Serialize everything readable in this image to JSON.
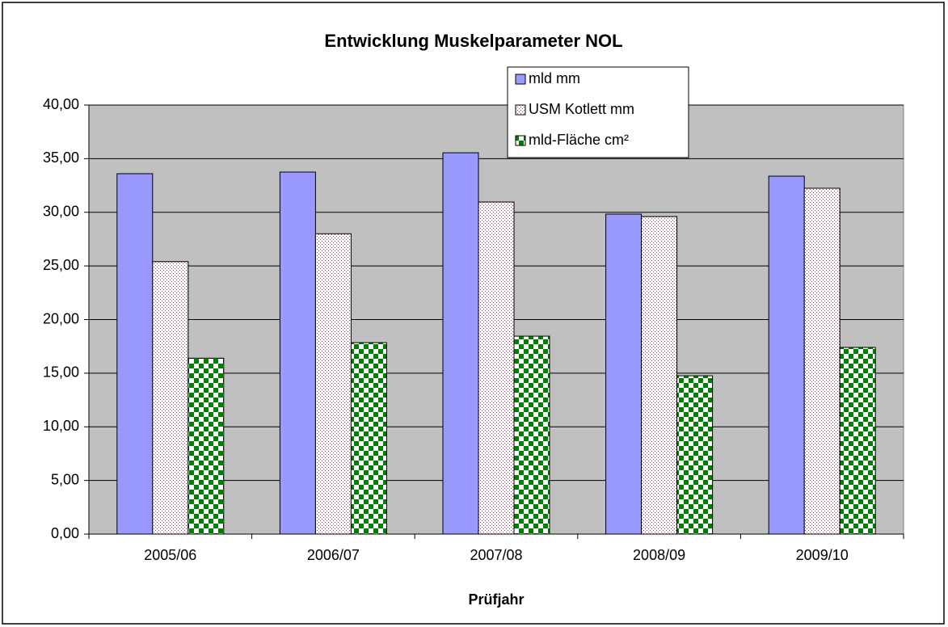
{
  "chart_data": {
    "type": "bar",
    "title": "Entwicklung Muskelparameter NOL",
    "x_label": "Prüfjahr",
    "categories": [
      "2005/06",
      "2006/07",
      "2007/08",
      "2008/09",
      "2009/10"
    ],
    "series": [
      {
        "name": "mld mm",
        "color": "#9999ff",
        "pattern": "solid",
        "values": [
          33.6,
          33.75,
          35.55,
          29.83,
          33.37
        ]
      },
      {
        "name": "USM Kotlett mm",
        "color": "#993366",
        "pattern": "dots",
        "values": [
          25.4,
          28.0,
          30.96,
          29.6,
          32.24
        ]
      },
      {
        "name": "mld-Fläche cm²",
        "color": "#008000",
        "pattern": "checker",
        "values": [
          16.4,
          17.85,
          18.45,
          14.76,
          17.4
        ]
      }
    ],
    "ylim": [
      0,
      40
    ],
    "yticks": [
      {
        "value": 0,
        "label": "0,00"
      },
      {
        "value": 5,
        "label": "5,00"
      },
      {
        "value": 10,
        "label": "10,00"
      },
      {
        "value": 15,
        "label": "15,00"
      },
      {
        "value": 20,
        "label": "20,00"
      },
      {
        "value": 25,
        "label": "25,00"
      },
      {
        "value": 30,
        "label": "30,00"
      },
      {
        "value": 35,
        "label": "35,00"
      },
      {
        "value": 40,
        "label": "40,00"
      }
    ],
    "grid": true,
    "legend": "top-right"
  }
}
